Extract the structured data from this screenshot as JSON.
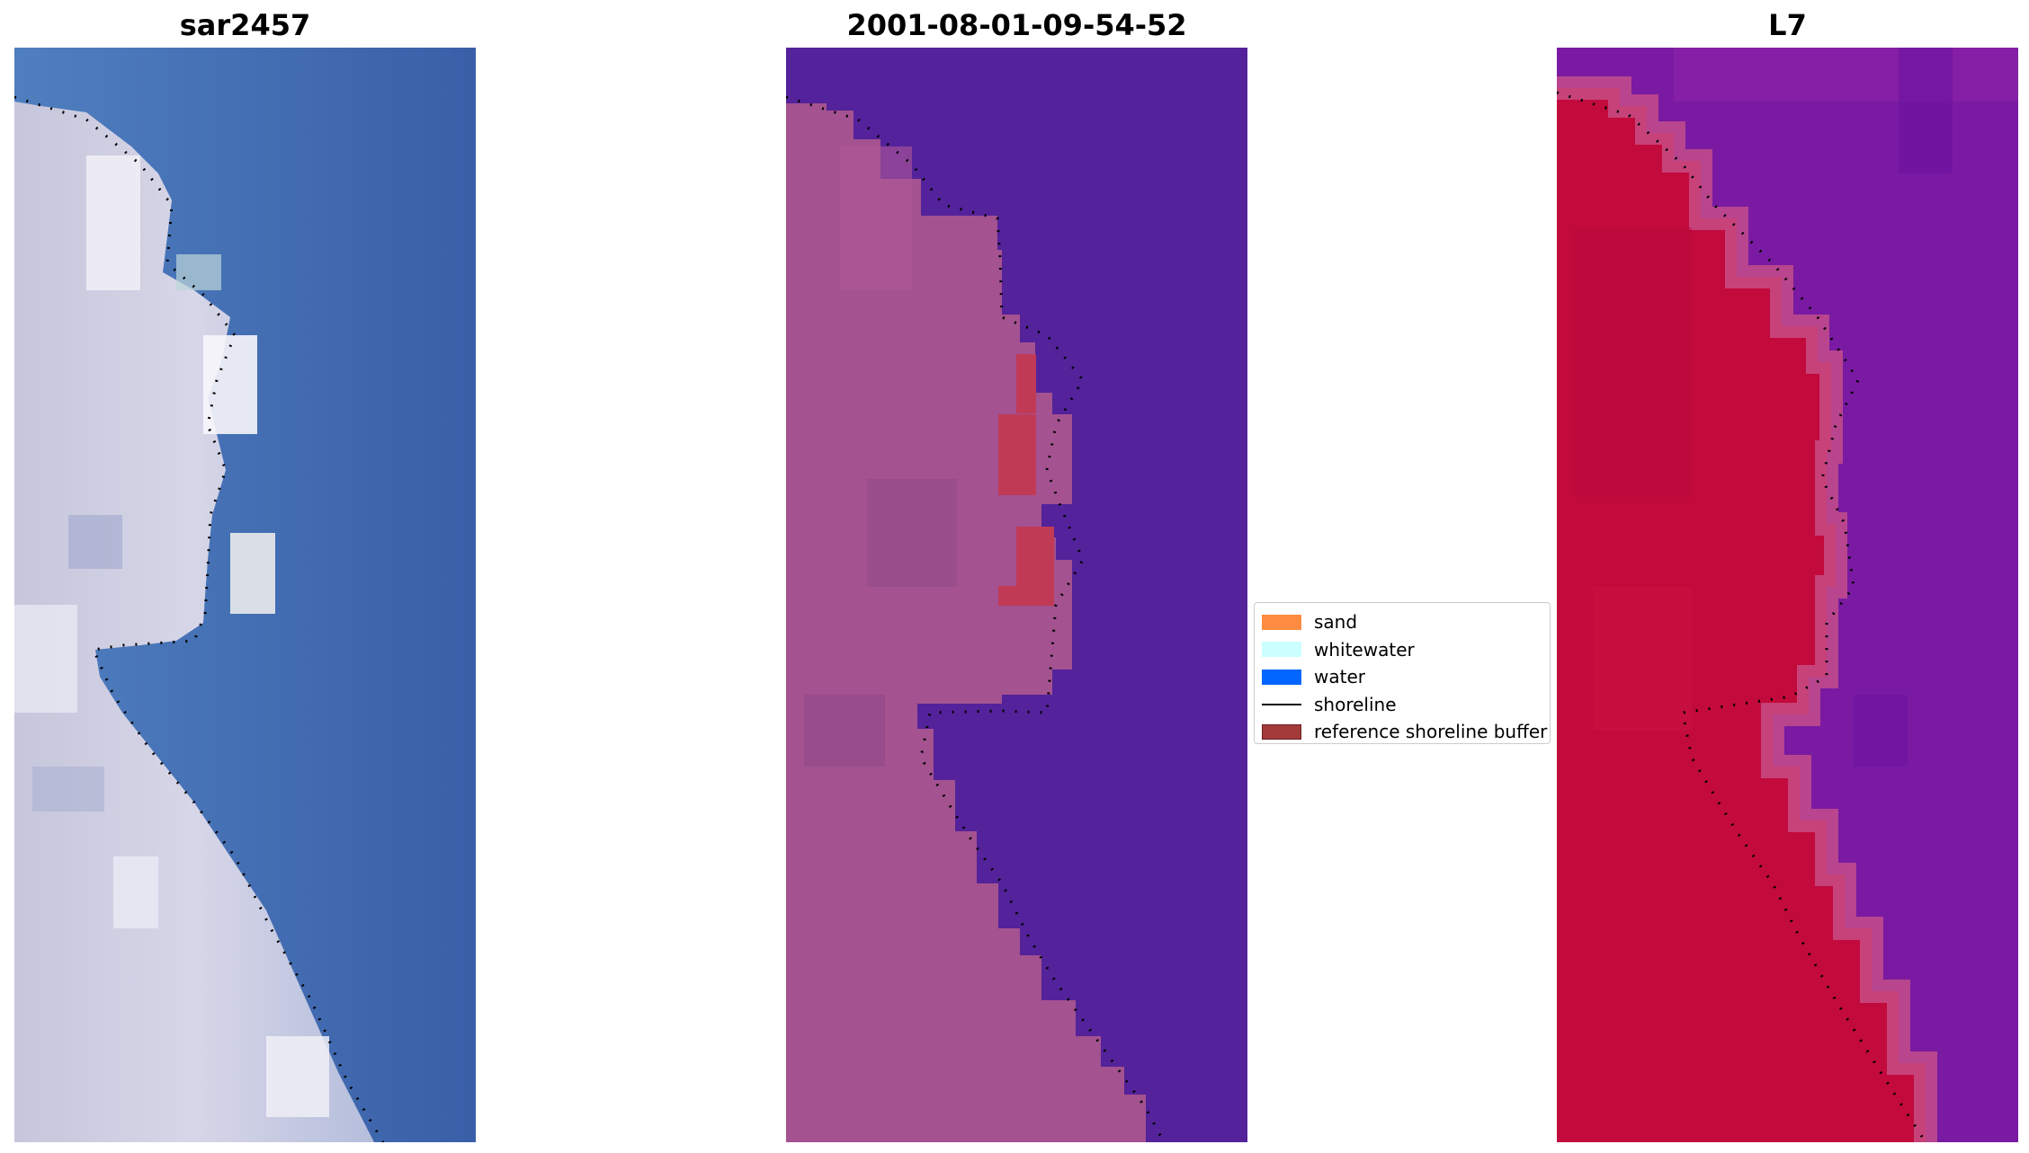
{
  "panels": [
    {
      "title": "sar2457",
      "image": "RGB satellite tile"
    },
    {
      "title": "2001-08-01-09-54-52",
      "image": "classified image"
    },
    {
      "title": "L7",
      "image": "MNDWI image"
    }
  ],
  "colors": {
    "sand": "#ff8c40",
    "whitewater": "#ccffff",
    "water": "#0066ff",
    "shoreline": "#000000",
    "buffer": "#a33a3a",
    "classified_land": "#a45290",
    "classified_water": "#54229a",
    "classified_buffer": "#c03a56",
    "rgb_water": "#3a62aa",
    "mndwi_land": "#c20a3c",
    "mndwi_water": "#7a1aa2"
  },
  "legend": {
    "items": [
      {
        "label": "sand",
        "type": "patch",
        "color": "#ff8c40"
      },
      {
        "label": "whitewater",
        "type": "patch",
        "color": "#ccffff"
      },
      {
        "label": "water",
        "type": "patch",
        "color": "#0066ff"
      },
      {
        "label": "shoreline",
        "type": "line",
        "color": "#000000"
      },
      {
        "label": "reference shoreline buffer",
        "type": "patch",
        "color": "#a33a3a"
      }
    ]
  }
}
